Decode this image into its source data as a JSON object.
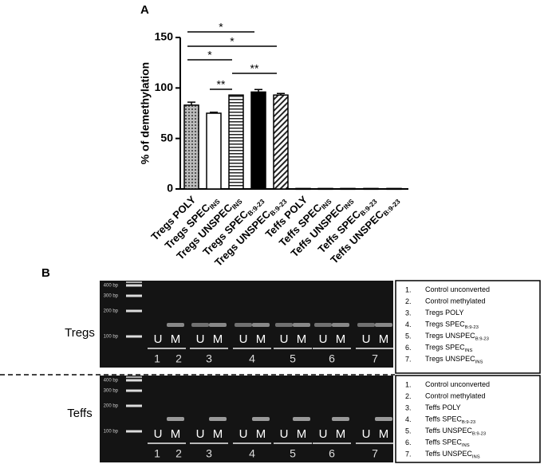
{
  "panel_labels": [
    "A",
    "B"
  ],
  "chart_data": {
    "type": "bar",
    "y_label": "% of demethylation",
    "categories": [
      "Tregs POLY",
      "Tregs SPEC",
      "Tregs UNSPEC",
      "Tregs SPEC",
      "Tregs UNSPEC",
      "Teffs POLY",
      "Teffs SPEC",
      "Teffs UNSPEC",
      "Teffs SPEC",
      "Teffs UNSPEC"
    ],
    "category_subscripts": [
      null,
      "INS",
      "INS",
      "B:9-23",
      "B:9-23",
      null,
      "INS",
      "INS",
      "B:9-23",
      "B:9-23"
    ],
    "values": [
      83,
      75,
      93,
      96,
      93,
      0.5,
      0.5,
      0.5,
      0.5,
      0.5
    ],
    "errors": [
      3,
      1,
      0,
      2.5,
      1.5,
      0,
      0,
      0,
      0,
      0
    ],
    "fills": [
      "dots",
      "white",
      "horizontal",
      "solid",
      "diagonal",
      "dots",
      "white",
      "horizontal",
      "solid",
      "diagonal"
    ],
    "ylim": [
      0,
      150
    ],
    "yticks": [
      0,
      50,
      100,
      150
    ],
    "significance": [
      "*",
      "*",
      "*",
      "**",
      "**"
    ]
  },
  "gel": {
    "panels": [
      {
        "label": "Tregs",
        "ladder": [
          "400 bp",
          "300 bp",
          "200 bp",
          "100 bp"
        ],
        "letters": [
          "U",
          "M",
          "U",
          "M",
          "U",
          "M",
          "U",
          "M",
          "U",
          "M",
          "U",
          "M"
        ],
        "numbers": [
          "1",
          "2",
          "3",
          "4",
          "5",
          "6",
          "7"
        ],
        "legend": [
          {
            "num": "1.",
            "text": "Control unconverted",
            "sub": null
          },
          {
            "num": "2.",
            "text": "Control methylated",
            "sub": null
          },
          {
            "num": "3.",
            "text": "Tregs POLY",
            "sub": null
          },
          {
            "num": "4.",
            "text": "Tregs SPEC",
            "sub": "B:9-23"
          },
          {
            "num": "5.",
            "text": "Tregs UNSPEC",
            "sub": "B:9-23"
          },
          {
            "num": "6.",
            "text": "Tregs SPEC",
            "sub": "INS"
          },
          {
            "num": "7.",
            "text": "Tregs UNSPEC",
            "sub": "INS"
          }
        ]
      },
      {
        "label": "Teffs",
        "ladder": [
          "400 bp",
          "300 bp",
          "200 bp",
          "100 bp"
        ],
        "letters": [
          "U",
          "M",
          "U",
          "M",
          "U",
          "M",
          "U",
          "M",
          "U",
          "M",
          "U",
          "M"
        ],
        "numbers": [
          "1",
          "2",
          "3",
          "4",
          "5",
          "6",
          "7"
        ],
        "legend": [
          {
            "num": "1.",
            "text": "Control unconverted",
            "sub": null
          },
          {
            "num": "2.",
            "text": "Control methylated",
            "sub": null
          },
          {
            "num": "3.",
            "text": "Teffs POLY",
            "sub": null
          },
          {
            "num": "4.",
            "text": "Teffs SPEC",
            "sub": "B:9-23"
          },
          {
            "num": "5.",
            "text": "Teffs UNSPEC",
            "sub": "B:9-23"
          },
          {
            "num": "6.",
            "text": "Teffs SPEC",
            "sub": "INS"
          },
          {
            "num": "7.",
            "text": "Teffs UNSPEC",
            "sub": "INS"
          }
        ]
      }
    ]
  }
}
